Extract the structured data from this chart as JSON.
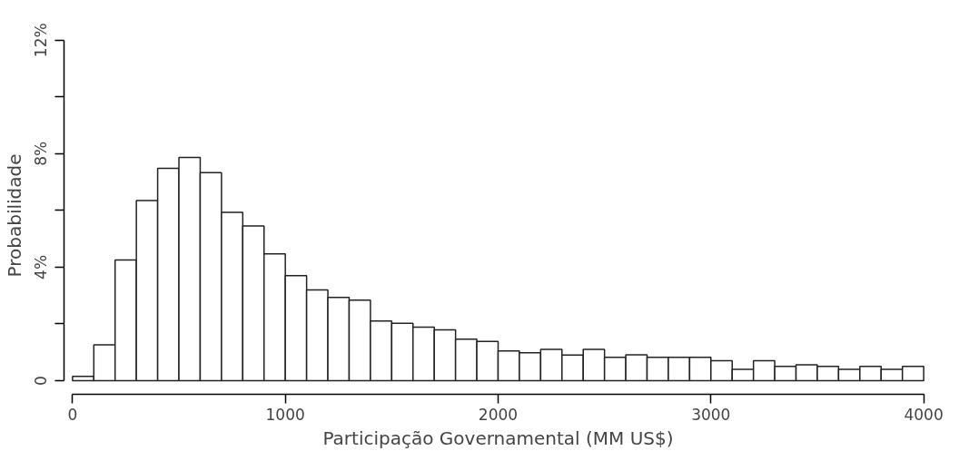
{
  "chart_data": {
    "type": "histogram",
    "xlabel": "Participação Governamental (MM US$)",
    "ylabel": "Probabilidade",
    "bins": [
      0,
      100,
      200,
      300,
      400,
      500,
      600,
      700,
      800,
      900,
      1000,
      1100,
      1200,
      1300,
      1400,
      1500,
      1600,
      1700,
      1800,
      1900,
      2000,
      2100,
      2200,
      2300,
      2400,
      2500,
      2600,
      2700,
      2800,
      2900,
      3000,
      3100,
      3200,
      3300,
      3400,
      3500,
      3600,
      3700,
      3800,
      3900,
      4000
    ],
    "values": [
      0.15,
      1.26,
      4.25,
      6.35,
      7.48,
      7.87,
      7.33,
      5.93,
      5.45,
      4.47,
      3.7,
      3.2,
      2.93,
      2.84,
      2.1,
      2.02,
      1.89,
      1.79,
      1.46,
      1.38,
      1.05,
      0.98,
      1.1,
      0.9,
      1.1,
      0.82,
      0.91,
      0.82,
      0.82,
      0.82,
      0.7,
      0.4,
      0.7,
      0.5,
      0.56,
      0.5,
      0.4,
      0.5,
      0.4,
      0.5
    ],
    "color": "#ffffff",
    "xlim": [
      0,
      4000
    ],
    "xticks": [
      0,
      1000,
      2000,
      3000,
      4000
    ],
    "ylim": [
      0,
      12
    ],
    "yticks": [
      {
        "value": 0,
        "label": "0"
      },
      {
        "value": 2,
        "label": null
      },
      {
        "value": 4,
        "label": "4%"
      },
      {
        "value": 6,
        "label": null
      },
      {
        "value": 8,
        "label": "8%"
      },
      {
        "value": 10,
        "label": null
      },
      {
        "value": 12,
        "label": "12%"
      }
    ],
    "grid": false
  }
}
